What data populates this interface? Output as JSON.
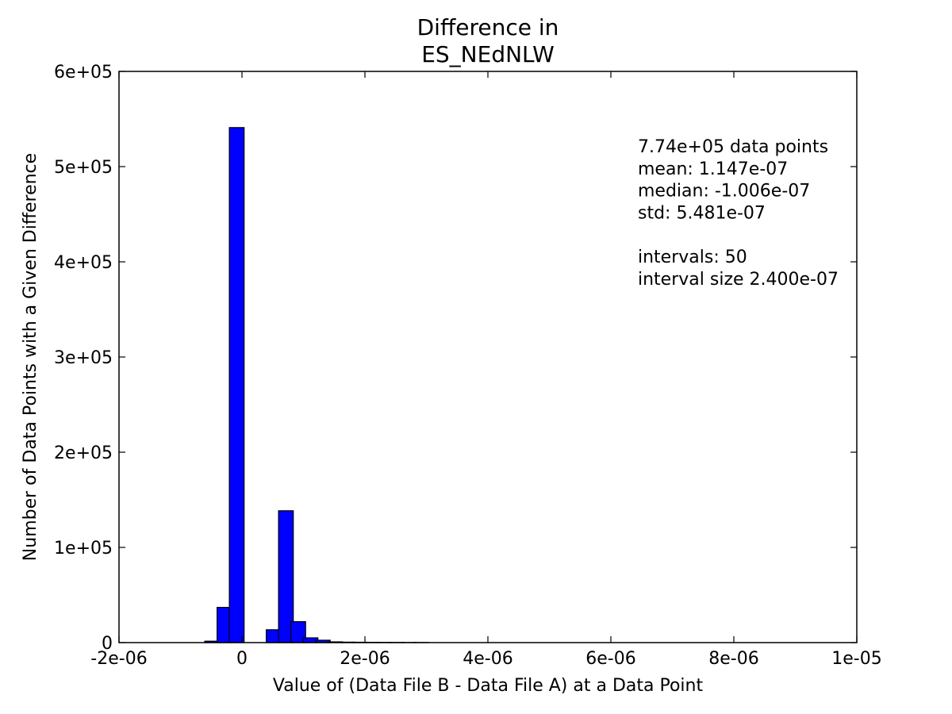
{
  "chart_data": {
    "type": "bar",
    "title_lines": [
      "Difference in",
      "ES_NEdNLW"
    ],
    "xlabel": "Value of (Data File B - Data File A) at a Data Point",
    "ylabel": "Number of Data Points with a Given Difference",
    "xlim": [
      -2e-06,
      1e-05
    ],
    "ylim": [
      0,
      600000
    ],
    "x_ticks": [
      {
        "value": -2e-06,
        "label": "-2e-06"
      },
      {
        "value": 0,
        "label": "0"
      },
      {
        "value": 2e-06,
        "label": "2e-06"
      },
      {
        "value": 4e-06,
        "label": "4e-06"
      },
      {
        "value": 6e-06,
        "label": "6e-06"
      },
      {
        "value": 8e-06,
        "label": "8e-06"
      },
      {
        "value": 1e-05,
        "label": "1e-05"
      }
    ],
    "y_ticks": [
      {
        "value": 0,
        "label": "0"
      },
      {
        "value": 100000,
        "label": "1e+05"
      },
      {
        "value": 200000,
        "label": "2e+05"
      },
      {
        "value": 300000,
        "label": "3e+05"
      },
      {
        "value": 400000,
        "label": "4e+05"
      },
      {
        "value": 500000,
        "label": "5e+05"
      },
      {
        "value": 600000,
        "label": "6e+05"
      }
    ],
    "bin_width": 2.4e-07,
    "bins": [
      {
        "start": -6.05e-07,
        "count": 1500
      },
      {
        "start": -4.05e-07,
        "count": 37000
      },
      {
        "start": -2.05e-07,
        "count": 541000
      },
      {
        "start": -5e-09,
        "count": 0
      },
      {
        "start": 3.95e-07,
        "count": 13500
      },
      {
        "start": 5.95e-07,
        "count": 138500
      },
      {
        "start": 7.95e-07,
        "count": 22000
      },
      {
        "start": 9.95e-07,
        "count": 5000
      },
      {
        "start": 1.195e-06,
        "count": 2500
      },
      {
        "start": 1.395e-06,
        "count": 800
      },
      {
        "start": 1.595e-06,
        "count": 500
      },
      {
        "start": 1.795e-06,
        "count": 400
      },
      {
        "start": 1.995e-06,
        "count": 300
      },
      {
        "start": 2.195e-06,
        "count": 250
      },
      {
        "start": 2.395e-06,
        "count": 200
      },
      {
        "start": 2.595e-06,
        "count": 150
      },
      {
        "start": 2.795e-06,
        "count": 120
      }
    ],
    "stats": {
      "lines": [
        "7.74e+05 data points",
        "mean: 1.147e-07",
        "median: -1.006e-07",
        "std: 5.481e-07",
        "",
        "intervals: 50",
        "interval size 2.400e-07"
      ]
    },
    "colors": {
      "bar": "#0000ff"
    }
  }
}
